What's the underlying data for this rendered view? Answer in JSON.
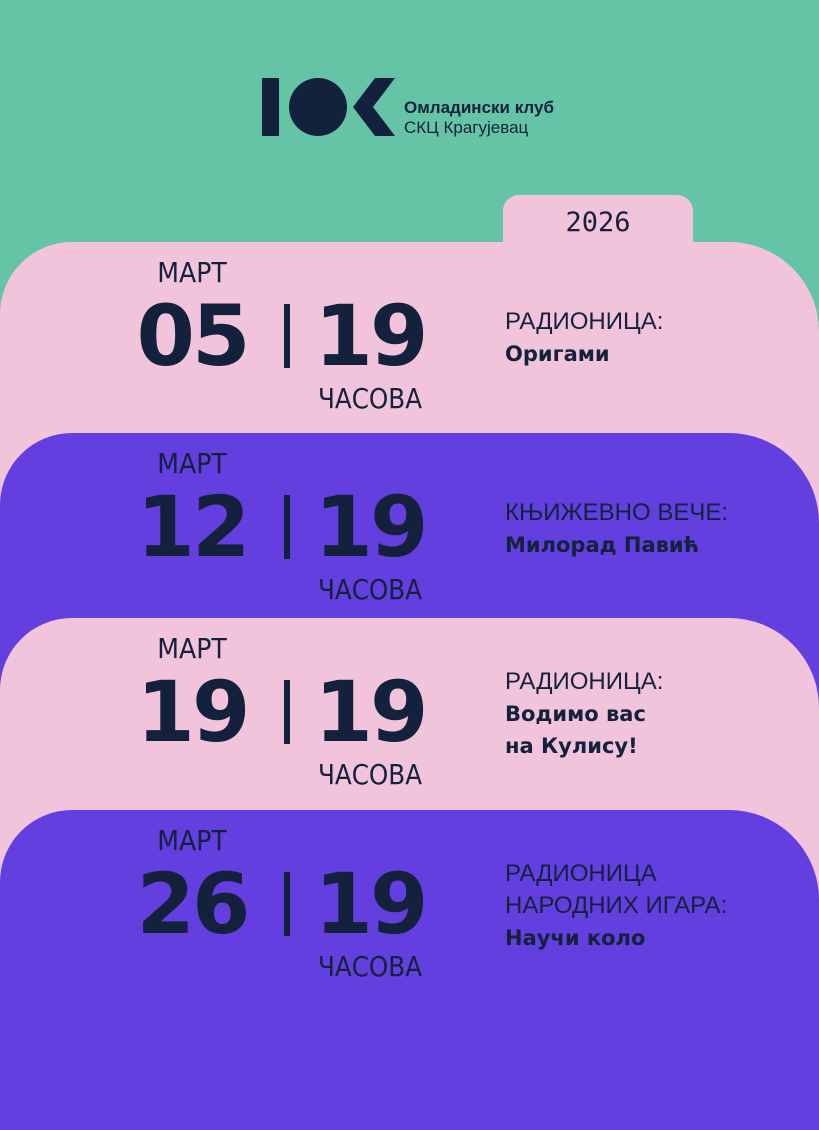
{
  "brand": {
    "logo_letters": "ЮК",
    "line1": "Омладински клуб",
    "line2": "СКЦ Крагујевац"
  },
  "year": "2026",
  "colors": {
    "background": "#66c4a6",
    "pink": "#f2c4dc",
    "purple": "#643fdf",
    "ink": "#14213d"
  },
  "events": [
    {
      "month": "МАРТ",
      "day": "05",
      "hour": "19",
      "hours_label": "ЧАСОВА",
      "type_lines": [
        "РАДИОНИЦА:"
      ],
      "title_lines": [
        "Оригами"
      ],
      "color": "pink"
    },
    {
      "month": "МАРТ",
      "day": "12",
      "hour": "19",
      "hours_label": "ЧАСОВА",
      "type_lines": [
        "КЊИЖЕВНО ВЕЧЕ:"
      ],
      "title_lines": [
        "Милорад Павић"
      ],
      "color": "purple"
    },
    {
      "month": "МАРТ",
      "day": "19",
      "hour": "19",
      "hours_label": "ЧАСОВА",
      "type_lines": [
        "РАДИОНИЦА:"
      ],
      "title_lines": [
        "Водимо вас",
        "на Кулису!"
      ],
      "color": "pink"
    },
    {
      "month": "МАРТ",
      "day": "26",
      "hour": "19",
      "hours_label": "ЧАСОВА",
      "type_lines": [
        "РАДИОНИЦА",
        "НАРОДНИХ ИГАРА:"
      ],
      "title_lines": [
        "Научи коло"
      ],
      "color": "purple"
    }
  ]
}
